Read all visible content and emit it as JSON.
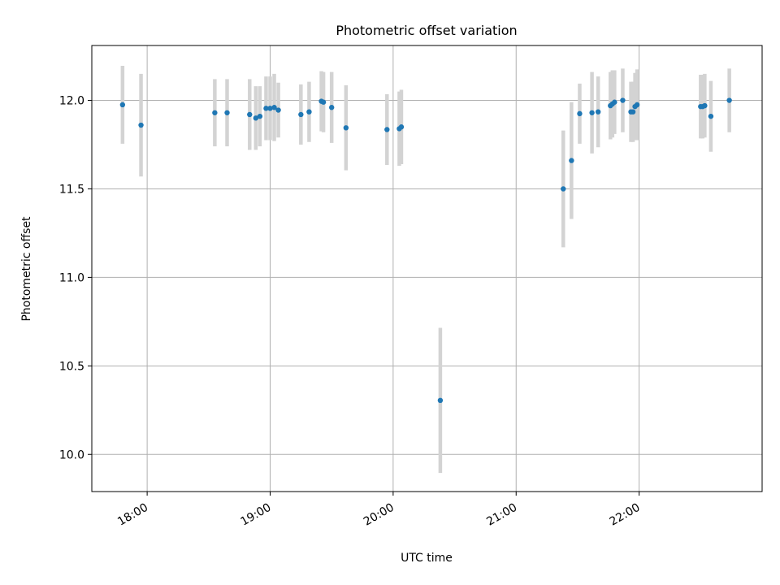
{
  "chart_data": {
    "type": "scatter",
    "title": "Photometric offset variation",
    "xlabel": "UTC time",
    "ylabel": "Photometric offset",
    "x_unit": "UTC time (HH:MM)",
    "xlim": [
      "17:33",
      "23:00"
    ],
    "ylim": [
      9.79,
      12.31
    ],
    "xticks": [
      "18:00",
      "19:00",
      "20:00",
      "21:00",
      "22:00"
    ],
    "yticks": [
      "10.0",
      "10.5",
      "11.0",
      "11.5",
      "12.0"
    ],
    "grid": true,
    "marker_color": "#1f77b4",
    "errorbar_color": "#d3d3d3",
    "points": [
      {
        "x": "17:48",
        "y": 11.975,
        "err": 0.22
      },
      {
        "x": "17:57",
        "y": 11.86,
        "err": 0.29
      },
      {
        "x": "18:33",
        "y": 11.93,
        "err": 0.19
      },
      {
        "x": "18:39",
        "y": 11.93,
        "err": 0.19
      },
      {
        "x": "18:50",
        "y": 11.92,
        "err": 0.2
      },
      {
        "x": "18:53",
        "y": 11.9,
        "err": 0.18
      },
      {
        "x": "18:55",
        "y": 11.91,
        "err": 0.17
      },
      {
        "x": "18:58",
        "y": 11.955,
        "err": 0.18
      },
      {
        "x": "19:00",
        "y": 11.955,
        "err": 0.18
      },
      {
        "x": "19:02",
        "y": 11.96,
        "err": 0.19
      },
      {
        "x": "19:04",
        "y": 11.945,
        "err": 0.155
      },
      {
        "x": "19:15",
        "y": 11.92,
        "err": 0.17
      },
      {
        "x": "19:19",
        "y": 11.935,
        "err": 0.17
      },
      {
        "x": "19:25",
        "y": 11.995,
        "err": 0.17
      },
      {
        "x": "19:26",
        "y": 11.99,
        "err": 0.17
      },
      {
        "x": "19:30",
        "y": 11.96,
        "err": 0.2
      },
      {
        "x": "19:37",
        "y": 11.845,
        "err": 0.24
      },
      {
        "x": "19:57",
        "y": 11.835,
        "err": 0.2
      },
      {
        "x": "20:03",
        "y": 11.84,
        "err": 0.21
      },
      {
        "x": "20:04",
        "y": 11.85,
        "err": 0.21
      },
      {
        "x": "20:23",
        "y": 10.305,
        "err": 0.41
      },
      {
        "x": "21:23",
        "y": 11.5,
        "err": 0.33
      },
      {
        "x": "21:27",
        "y": 11.66,
        "err": 0.33
      },
      {
        "x": "21:31",
        "y": 11.925,
        "err": 0.17
      },
      {
        "x": "21:37",
        "y": 11.93,
        "err": 0.23
      },
      {
        "x": "21:40",
        "y": 11.935,
        "err": 0.2
      },
      {
        "x": "21:46",
        "y": 11.97,
        "err": 0.19
      },
      {
        "x": "21:47",
        "y": 11.98,
        "err": 0.19
      },
      {
        "x": "21:48",
        "y": 11.99,
        "err": 0.18
      },
      {
        "x": "21:52",
        "y": 12.0,
        "err": 0.18
      },
      {
        "x": "21:56",
        "y": 11.935,
        "err": 0.17
      },
      {
        "x": "21:57",
        "y": 11.935,
        "err": 0.17
      },
      {
        "x": "21:59",
        "y": 11.975,
        "err": 0.2
      },
      {
        "x": "21:58",
        "y": 11.965,
        "err": 0.19
      },
      {
        "x": "22:30",
        "y": 11.965,
        "err": 0.18
      },
      {
        "x": "22:31",
        "y": 11.965,
        "err": 0.18
      },
      {
        "x": "22:32",
        "y": 11.97,
        "err": 0.18
      },
      {
        "x": "22:35",
        "y": 11.91,
        "err": 0.2
      },
      {
        "x": "22:44",
        "y": 12.0,
        "err": 0.18
      }
    ]
  }
}
